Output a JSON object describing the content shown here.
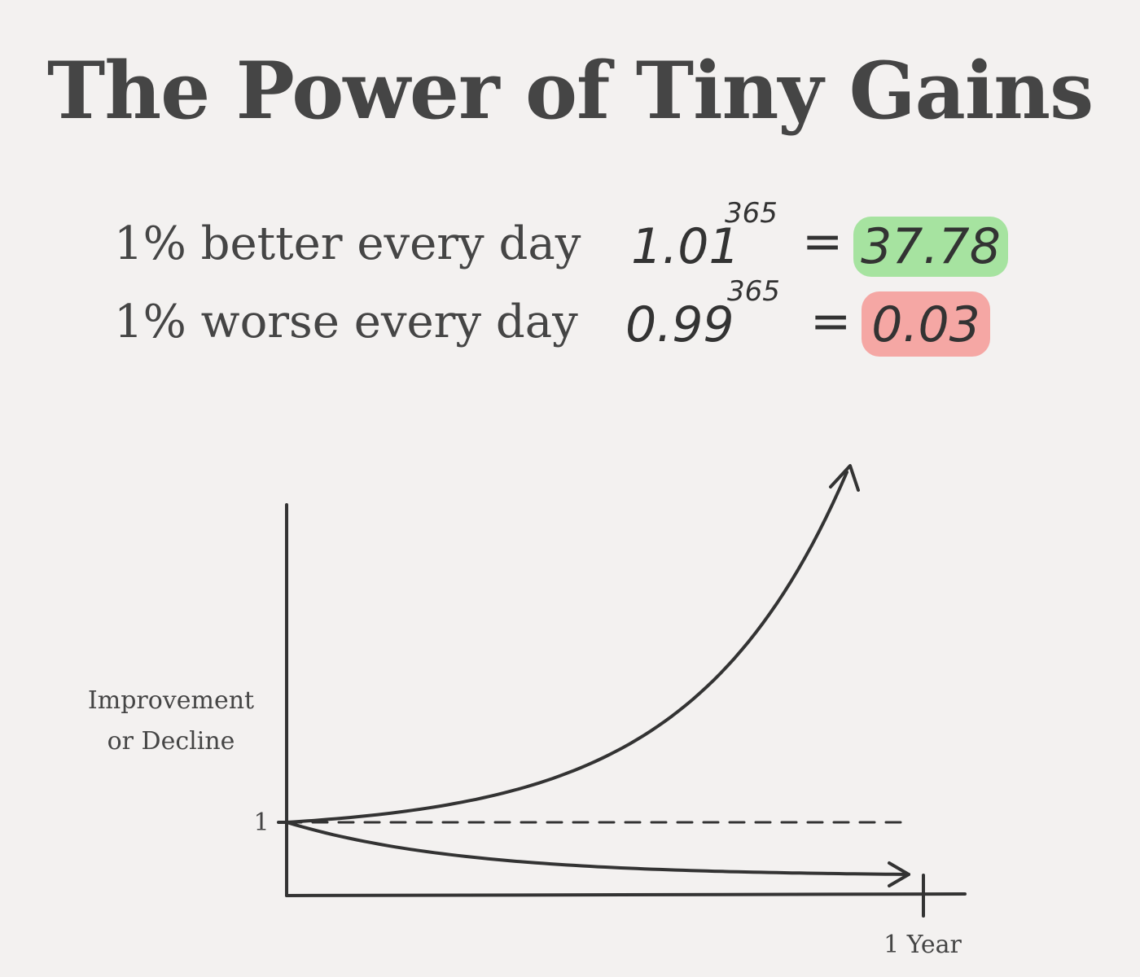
{
  "title": "The Power of Tiny Gains",
  "rows": [
    {
      "label": "1% better every day",
      "base": "1.01",
      "exponent": "365",
      "equals": "=",
      "result": "37.78",
      "highlight": "#a6e3a0"
    },
    {
      "label": "1% worse every day",
      "base": "0.99",
      "exponent": "365",
      "equals": "=",
      "result": "0.03",
      "highlight": "#f5a7a4"
    }
  ],
  "chart_data": {
    "type": "line",
    "ylabel_line1": "Improvement",
    "ylabel_line2": "or Decline",
    "xlabel": "1 Year",
    "y_tick": "1",
    "baseline": 1,
    "line_color": "#333333",
    "series": [
      {
        "points": [
          [
            0,
            1.0
          ],
          [
            0.25,
            2.5
          ],
          [
            0.5,
            6.1
          ],
          [
            0.75,
            15.2
          ],
          [
            1.0,
            37.78
          ]
        ]
      },
      {
        "points": [
          [
            0,
            1.0
          ],
          [
            0.25,
            0.4
          ],
          [
            0.5,
            0.16
          ],
          [
            0.75,
            0.07
          ],
          [
            1.0,
            0.03
          ]
        ]
      }
    ]
  }
}
